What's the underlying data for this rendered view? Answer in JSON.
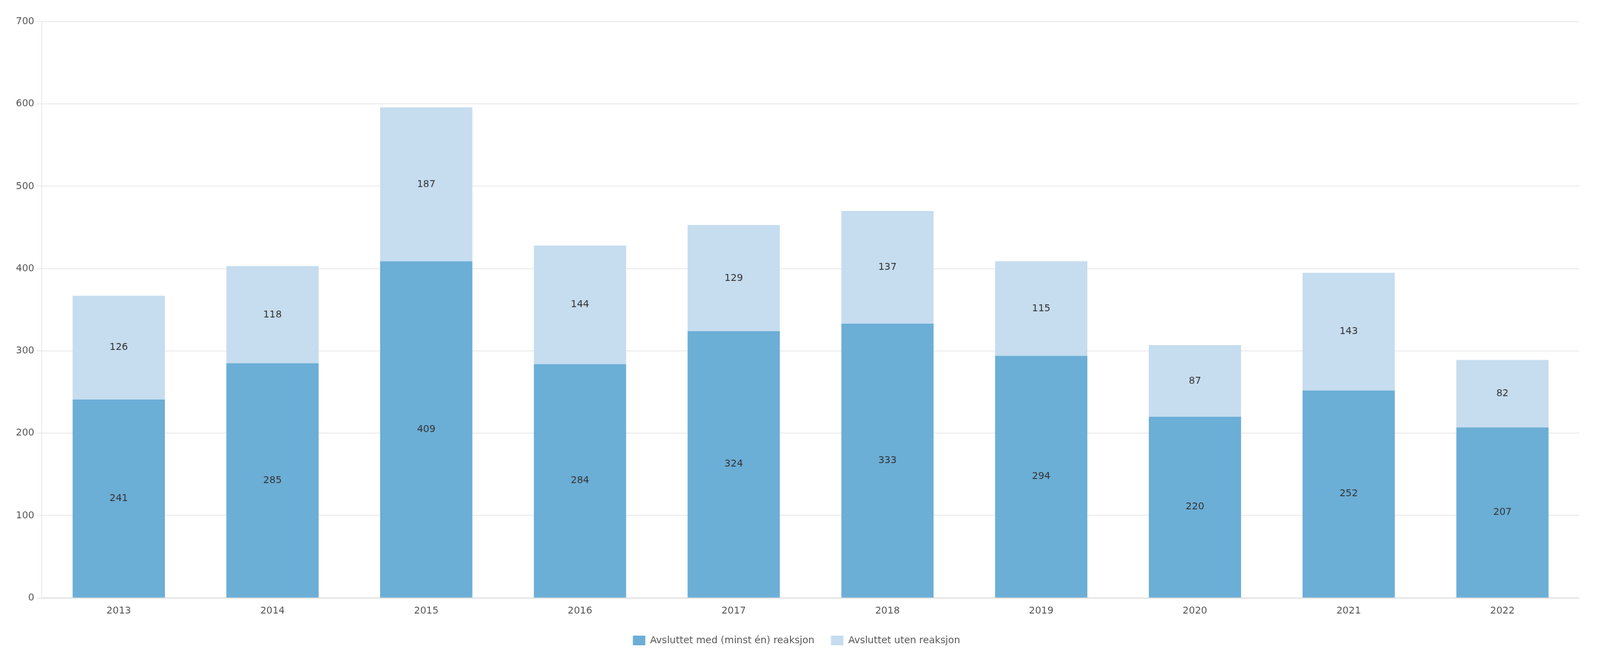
{
  "chart_data": {
    "type": "bar",
    "stacked": true,
    "categories": [
      "2013",
      "2014",
      "2015",
      "2016",
      "2017",
      "2018",
      "2019",
      "2020",
      "2021",
      "2022"
    ],
    "series": [
      {
        "name": "Avsluttet med (minst én) reaksjon",
        "color": "#6BAED6",
        "values": [
          241,
          285,
          409,
          284,
          324,
          333,
          294,
          220,
          252,
          207
        ]
      },
      {
        "name": "Avsluttet uten reaksjon",
        "color": "#C6DCEF",
        "values": [
          126,
          118,
          187,
          144,
          129,
          137,
          115,
          87,
          143,
          82
        ]
      }
    ],
    "ylim": [
      0,
      700
    ],
    "yticks": [
      0,
      100,
      200,
      300,
      400,
      500,
      600,
      700
    ],
    "grid": true,
    "legend": "bottom",
    "data_labels": true
  }
}
